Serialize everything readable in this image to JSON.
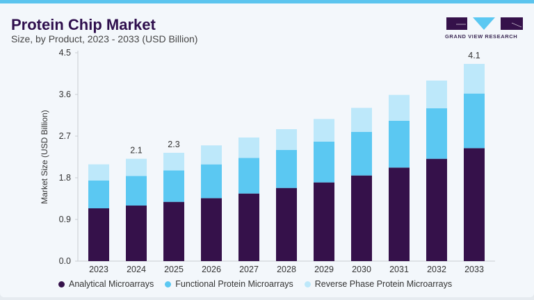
{
  "header": {
    "title": "Protein Chip Market",
    "subtitle": "Size, by Product, 2023 - 2033 (USD Billion)",
    "logo_text": "GRAND VIEW RESEARCH"
  },
  "colors": {
    "analytical": "#35114a",
    "functional": "#5bc8f2",
    "reverse": "#bde8fa",
    "accent": "#5bc4ee"
  },
  "chart_data": {
    "type": "bar",
    "stacked": true,
    "title": "Protein Chip Market",
    "subtitle": "Size, by Product, 2023 - 2033 (USD Billion)",
    "xlabel": "",
    "ylabel": "Market Size (USD Billion)",
    "ylim": [
      0,
      4.5
    ],
    "yticks": [
      "0.0",
      "0.9",
      "1.8",
      "2.7",
      "3.6",
      "4.5"
    ],
    "grid": false,
    "legend_position": "bottom",
    "categories": [
      "2023",
      "2024",
      "2025",
      "2026",
      "2027",
      "2028",
      "2029",
      "2030",
      "2031",
      "2032",
      "2033"
    ],
    "series": [
      {
        "name": "Analytical Microarrays",
        "values": [
          1.14,
          1.2,
          1.28,
          1.36,
          1.46,
          1.58,
          1.7,
          1.85,
          2.02,
          2.21,
          2.44
        ]
      },
      {
        "name": "Functional Protein Microarrays",
        "values": [
          0.6,
          0.64,
          0.68,
          0.73,
          0.77,
          0.82,
          0.88,
          0.94,
          1.01,
          1.09,
          1.18
        ]
      },
      {
        "name": "Reverse Phase Protein Microarrays",
        "values": [
          0.35,
          0.37,
          0.38,
          0.41,
          0.44,
          0.45,
          0.49,
          0.52,
          0.56,
          0.6,
          0.64
        ]
      }
    ],
    "data_labels": [
      {
        "category": "2024",
        "text": "2.1"
      },
      {
        "category": "2025",
        "text": "2.3"
      },
      {
        "category": "2033",
        "text": "4.1"
      }
    ]
  }
}
